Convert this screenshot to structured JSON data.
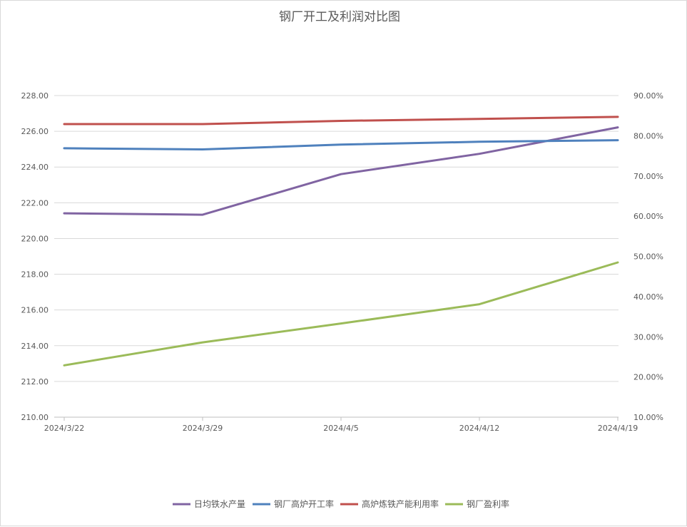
{
  "chart_data": {
    "type": "line",
    "title": "钢厂开工及利润对比图",
    "categories": [
      "2024/3/22",
      "2024/3/29",
      "2024/4/5",
      "2024/4/12",
      "2024/4/19"
    ],
    "y_left": {
      "min": 210,
      "max": 228,
      "step": 2,
      "tick_labels": [
        "210.00",
        "212.00",
        "214.00",
        "216.00",
        "218.00",
        "220.00",
        "222.00",
        "224.00",
        "226.00",
        "228.00"
      ]
    },
    "y_right": {
      "min": 0.1,
      "max": 0.9,
      "step": 0.1,
      "tick_labels": [
        "10.00%",
        "20.00%",
        "30.00%",
        "40.00%",
        "50.00%",
        "60.00%",
        "70.00%",
        "80.00%",
        "90.00%"
      ]
    },
    "grid": true,
    "legend_position": "bottom",
    "series": [
      {
        "name": "日均铁水产量",
        "axis": "left",
        "color": "#8064a2",
        "values": [
          221.41,
          221.33,
          223.6,
          224.74,
          226.22
        ]
      },
      {
        "name": "钢厂高炉开工率",
        "axis": "right",
        "color": "#4f81bd",
        "values": [
          0.769,
          0.766,
          0.778,
          0.785,
          0.789
        ]
      },
      {
        "name": "高炉炼铁产能利用率",
        "axis": "right",
        "color": "#c0504d",
        "values": [
          0.829,
          0.829,
          0.837,
          0.842,
          0.847
        ]
      },
      {
        "name": "钢厂盈利率",
        "axis": "right",
        "color": "#9bbb59",
        "values": [
          0.229,
          0.286,
          0.333,
          0.381,
          0.485
        ]
      }
    ]
  }
}
